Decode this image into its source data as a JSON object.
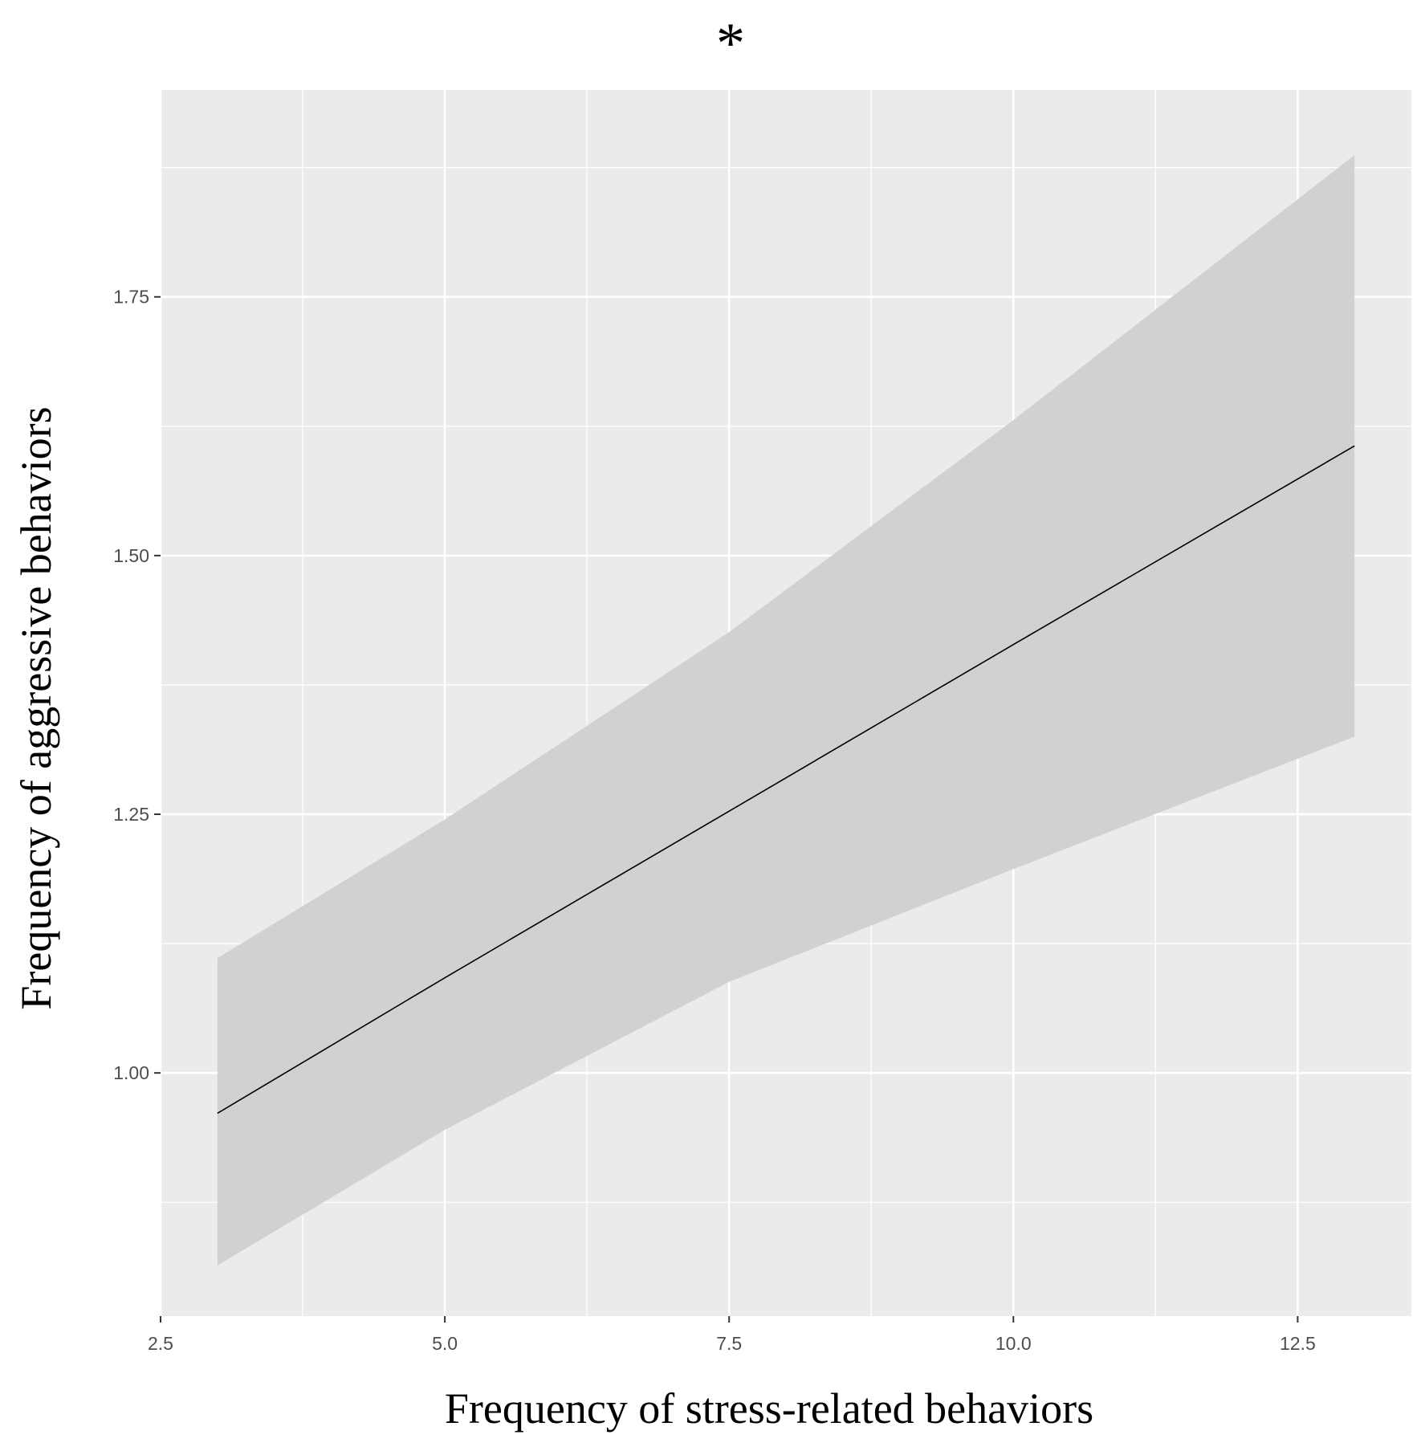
{
  "chart_data": {
    "type": "line",
    "title": "*",
    "xlabel": "Frequency of stress-related behaviors",
    "ylabel": "Frequency of aggressive behaviors",
    "xlim": [
      2.5,
      13.5
    ],
    "ylim": [
      0.765,
      1.95
    ],
    "x_ticks": [
      2.5,
      5.0,
      7.5,
      10.0,
      12.5
    ],
    "x_tick_labels": [
      "2.5",
      "5.0",
      "7.5",
      "10.0",
      "12.5"
    ],
    "y_ticks": [
      1.0,
      1.25,
      1.5,
      1.75
    ],
    "y_tick_labels": [
      "1.00",
      "1.25",
      "1.50",
      "1.75"
    ],
    "grid": true,
    "series": [
      {
        "x": [
          3,
          5,
          7.5,
          10,
          13
        ],
        "y": [
          0.961,
          1.092,
          1.253,
          1.414,
          1.606
        ],
        "ci_lower": [
          0.814,
          0.945,
          1.088,
          1.197,
          1.325
        ],
        "ci_upper": [
          1.111,
          1.245,
          1.426,
          1.631,
          1.887
        ],
        "line_color": "#000000",
        "band_color": "#d1d1d1"
      }
    ],
    "colors": {
      "panel_background": "#ebebeb",
      "grid": "#ffffff"
    }
  }
}
